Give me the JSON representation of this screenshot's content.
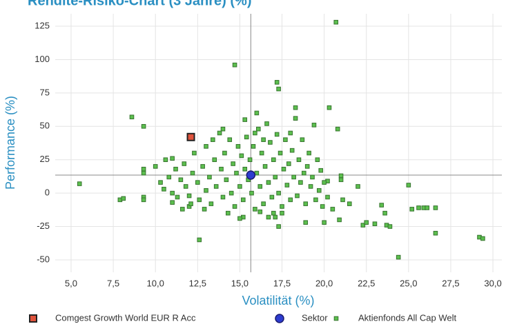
{
  "chart_data": {
    "type": "scatter",
    "title": "Rendite-Risiko-Chart (3 Jahre) (%)",
    "x_label": "Volatilität (%)",
    "y_label": "Performance (%)",
    "xlim": [
      4.06,
      30.53
    ],
    "ylim": [
      -59.3,
      134.3
    ],
    "xticks": [
      {
        "value": 5,
        "label": "5,0"
      },
      {
        "value": 7.5,
        "label": "7,5"
      },
      {
        "value": 10,
        "label": "10,0"
      },
      {
        "value": 12.5,
        "label": "12,5"
      },
      {
        "value": 15,
        "label": "15,0"
      },
      {
        "value": 17.5,
        "label": "17,5"
      },
      {
        "value": 20,
        "label": "20,0"
      },
      {
        "value": 22.5,
        "label": "22,5"
      },
      {
        "value": 25,
        "label": "25,0"
      },
      {
        "value": 27.5,
        "label": "27,5"
      },
      {
        "value": 30,
        "label": "30,0"
      }
    ],
    "yticks": [
      -50,
      -25,
      0,
      25,
      50,
      75,
      100,
      125
    ],
    "grid": true,
    "series": [
      {
        "name": "Aktienfonds All Cap Welt",
        "color": "#5cbf4e",
        "x": [
          5.5,
          7.9,
          8.1,
          8.6,
          9.3,
          9.3,
          9.3,
          9.3,
          9.3,
          12.6,
          14.7,
          17.2,
          17.3,
          18.3,
          20.7,
          20.8,
          20.3,
          19.4,
          22.0,
          22.3,
          22.5,
          23.0,
          23.4,
          23.6,
          23.7,
          23.9,
          24.4,
          25.0,
          25.2,
          25.6,
          25.9,
          26.1,
          26.6,
          26.6,
          29.2,
          29.4,
          11.0,
          11.6,
          12.0,
          21.5,
          21.0,
          21.0,
          20.5,
          20.9,
          20.0,
          18.9,
          17.1,
          17.5,
          15.2,
          15.0,
          17.3,
          19.8,
          20.2,
          21.1,
          10.0,
          10.3,
          10.5,
          10.6,
          10.8,
          11.0,
          11.2,
          11.3,
          11.5,
          11.7,
          11.8,
          12.0,
          12.2,
          12.3,
          12.5,
          12.6,
          12.8,
          13.0,
          13.0,
          13.2,
          13.3,
          13.5,
          13.6,
          13.8,
          13.9,
          14.0,
          14.1,
          14.2,
          14.4,
          14.5,
          14.6,
          14.7,
          14.8,
          14.9,
          15.0,
          15.1,
          15.2,
          15.3,
          15.4,
          15.5,
          15.6,
          15.7,
          15.8,
          15.9,
          16.0,
          16.0,
          16.1,
          16.2,
          16.3,
          16.4,
          16.5,
          16.6,
          16.7,
          16.8,
          16.9,
          17.0,
          17.1,
          17.2,
          17.3,
          17.4,
          17.5,
          17.6,
          17.7,
          17.8,
          17.9,
          18.0,
          18.1,
          18.2,
          18.3,
          18.4,
          18.5,
          18.6,
          18.7,
          18.8,
          18.9,
          19.0,
          19.1,
          19.2,
          19.3,
          19.5,
          19.6,
          19.7,
          19.9,
          20.0,
          20.2,
          12.9,
          13.4,
          14.3,
          15.9,
          16.4,
          17.0,
          14.0,
          11.0,
          12.1,
          16.2,
          15.3,
          16.7,
          18.0
        ],
        "values": [
          7,
          -5,
          -4,
          57,
          50,
          18,
          15,
          -3,
          -5,
          -35,
          96,
          83,
          78,
          64,
          128,
          48,
          64,
          51,
          5,
          -24,
          -22,
          -23,
          -9,
          -15,
          -24,
          -25,
          -48,
          6,
          -12,
          -11,
          -11,
          -11,
          -11,
          -30,
          -33,
          -34,
          -7,
          -12,
          -10,
          -8,
          13,
          10,
          -12,
          -20,
          -22,
          -22,
          -18,
          -15,
          -18,
          -19,
          -25,
          17,
          9,
          -5,
          20,
          8,
          3,
          25,
          12,
          0,
          18,
          -3,
          10,
          22,
          5,
          -2,
          15,
          30,
          8,
          -5,
          20,
          2,
          35,
          12,
          -8,
          25,
          5,
          45,
          18,
          -3,
          30,
          10,
          40,
          0,
          22,
          -10,
          15,
          35,
          5,
          28,
          -5,
          18,
          42,
          10,
          25,
          0,
          35,
          -12,
          60,
          15,
          48,
          5,
          30,
          -8,
          20,
          52,
          8,
          38,
          -3,
          25,
          12,
          44,
          0,
          30,
          -10,
          18,
          40,
          6,
          22,
          -5,
          32,
          12,
          56,
          -2,
          25,
          8,
          40,
          15,
          -8,
          20,
          30,
          5,
          12,
          -5,
          25,
          2,
          -10,
          8,
          -3,
          -12,
          40,
          -15,
          45,
          40,
          -15,
          48,
          26,
          -8,
          -14,
          55,
          -18,
          45
        ]
      },
      {
        "name": "Sektor",
        "color": "#2d3ccf",
        "x": [
          15.65
        ],
        "values": [
          13.5
        ]
      },
      {
        "name": "Comgest Growth World EUR R Acc",
        "color": "#e0533c",
        "x": [
          12.1
        ],
        "values": [
          42
        ]
      }
    ]
  }
}
